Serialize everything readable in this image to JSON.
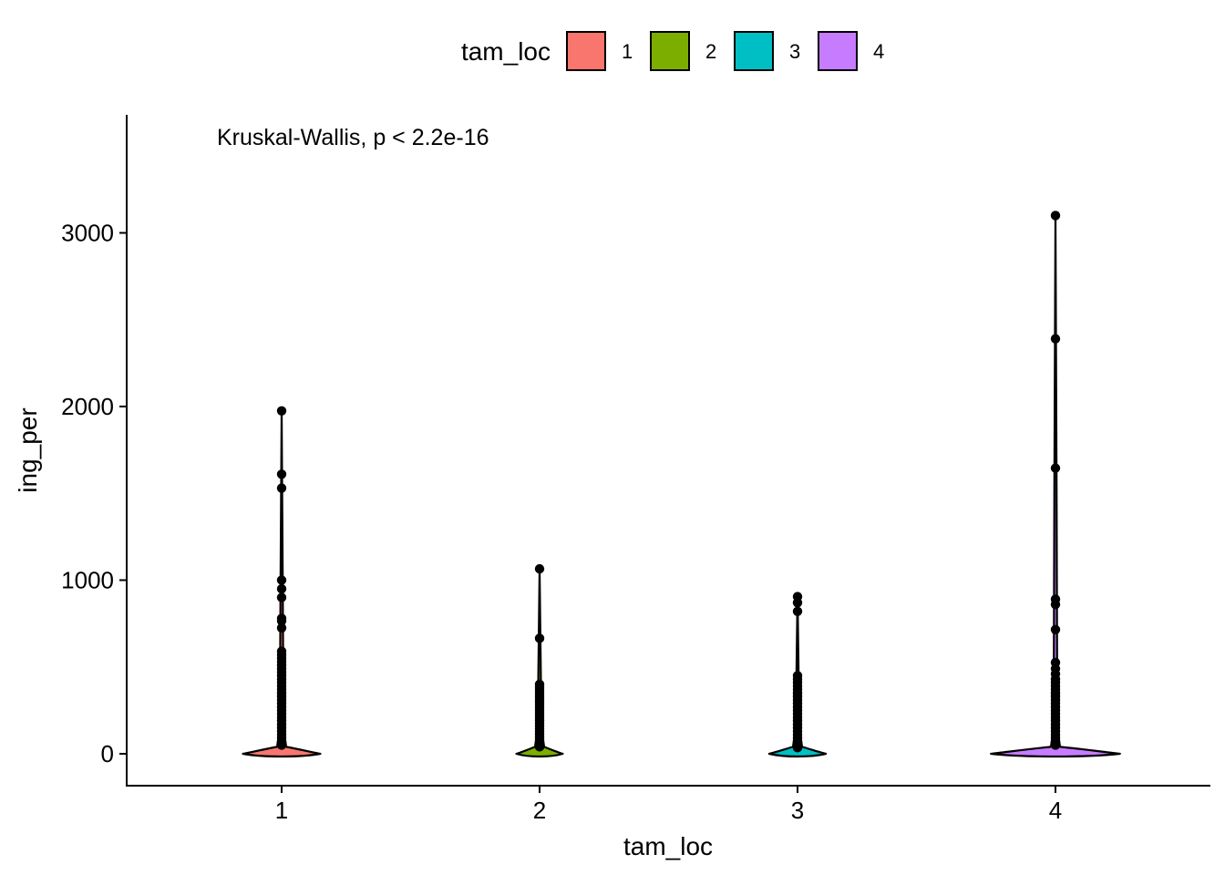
{
  "chart_data": {
    "type": "violin",
    "xlabel": "tam_loc",
    "ylabel": "ing_per",
    "categories": [
      "1",
      "2",
      "3",
      "4"
    ],
    "ylim": [
      -170,
      3640
    ],
    "yticks": [
      0,
      1000,
      2000,
      3000
    ],
    "annotation": "Kruskal-Wallis, p < 2.2e-16",
    "legend": {
      "title": "tam_loc",
      "placement": "top",
      "entries": [
        {
          "label": "1",
          "color": "#F8766D"
        },
        {
          "label": "2",
          "color": "#7CAE00"
        },
        {
          "label": "3",
          "color": "#00BFC4"
        },
        {
          "label": "4",
          "color": "#C77CFF"
        }
      ]
    },
    "groups": [
      {
        "category": "1",
        "color": "#F8766D",
        "violin_half_width": 0.15,
        "max": 1975,
        "outliers": [
          1975,
          1610,
          1530,
          1000,
          950,
          900,
          780,
          765,
          725,
          590,
          570,
          550,
          530,
          510,
          490,
          470,
          450,
          430,
          410,
          390,
          370,
          350,
          330,
          310,
          290,
          270,
          250,
          230,
          210,
          190,
          170,
          150,
          130,
          110,
          90,
          70,
          50
        ]
      },
      {
        "category": "2",
        "color": "#7CAE00",
        "violin_half_width": 0.09,
        "max": 1065,
        "outliers": [
          1065,
          665,
          400,
          385,
          370,
          355,
          340,
          325,
          310,
          295,
          280,
          265,
          250,
          235,
          220,
          205,
          190,
          175,
          160,
          145,
          130,
          115,
          100,
          85,
          70,
          55,
          40
        ]
      },
      {
        "category": "3",
        "color": "#00BFC4",
        "violin_half_width": 0.11,
        "max": 905,
        "outliers": [
          905,
          870,
          820,
          450,
          430,
          410,
          390,
          370,
          350,
          330,
          310,
          290,
          270,
          250,
          230,
          210,
          190,
          170,
          150,
          130,
          110,
          90,
          70,
          50,
          35
        ]
      },
      {
        "category": "4",
        "color": "#C77CFF",
        "violin_half_width": 0.25,
        "max": 3100,
        "outliers": [
          3100,
          2390,
          1645,
          890,
          860,
          715,
          525,
          490,
          460,
          430,
          410,
          390,
          370,
          350,
          330,
          310,
          290,
          270,
          250,
          230,
          210,
          190,
          170,
          150,
          130,
          110,
          90,
          70,
          50
        ]
      }
    ]
  }
}
